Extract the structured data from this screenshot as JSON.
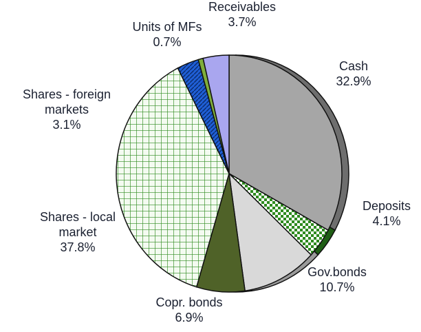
{
  "chart_data": {
    "type": "pie",
    "title": "",
    "legend": "none",
    "slices": [
      {
        "label": [
          "Cash"
        ],
        "value": 32.9,
        "display": "32.9%",
        "color": "#a6a6a6",
        "side": "#6e6e6e",
        "pattern": "solid"
      },
      {
        "label": [
          "Deposits"
        ],
        "value": 4.1,
        "display": "4.1%",
        "color": "#2e8b1f",
        "side": "#1f5e15",
        "pattern": "checker"
      },
      {
        "label": [
          "Gov.bonds"
        ],
        "value": 10.7,
        "display": "10.7%",
        "color": "#d9d9d9",
        "side": "#9a9a9a",
        "pattern": "solid"
      },
      {
        "label": [
          "Copr. bonds"
        ],
        "value": 6.9,
        "display": "6.9%",
        "color": "#4f6228",
        "side": "#34411a",
        "pattern": "solid"
      },
      {
        "label": [
          "Shares - local",
          "market"
        ],
        "value": 37.8,
        "display": "37.8%",
        "color": "#2e8b1f",
        "side": "#1f5e15",
        "pattern": "grid"
      },
      {
        "label": [
          "Shares - foreign",
          "markets"
        ],
        "value": 3.1,
        "display": "3.1%",
        "color": "#1f3f6e",
        "side": "#0d2240",
        "pattern": "diagonal"
      },
      {
        "label": [
          "Units of MFs"
        ],
        "value": 0.7,
        "display": "0.7%",
        "color": "#7fae3b",
        "side": "#54761f",
        "pattern": "solid"
      },
      {
        "label": [
          "Receivables"
        ],
        "value": 3.7,
        "display": "3.7%",
        "color": "#a9a6ef",
        "side": "#6d69b8",
        "pattern": "solid"
      }
    ]
  }
}
